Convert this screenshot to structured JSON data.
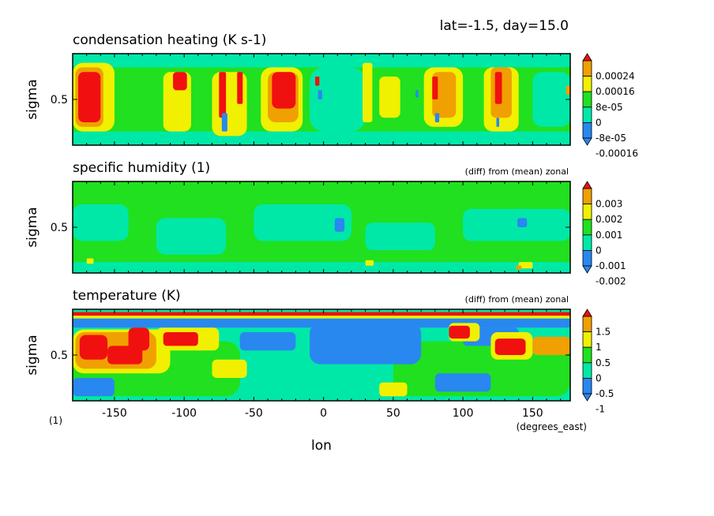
{
  "figure": {
    "header": "lat=-1.5, day=15.0",
    "xlabel": "lon",
    "x_units": "(degrees_east)",
    "y_units": "(1)"
  },
  "colors": {
    "red": "#f01010",
    "orange": "#f0a000",
    "yellow": "#f0f000",
    "green": "#20e020",
    "cyan": "#00e8a8",
    "blue": "#2888f0",
    "axis": "#000000"
  },
  "chart_data": [
    {
      "type": "heatmap",
      "title": "condensation heating (K s-1)",
      "subtitle": "",
      "ylabel": "sigma",
      "xlabel": "lon",
      "xlim": [
        -180,
        177
      ],
      "ylim": [
        0.0,
        1.0
      ],
      "x_ticks": [
        "-150",
        "-100",
        "-50",
        "0",
        "50",
        "100",
        "150"
      ],
      "x_tick_values": [
        -150,
        -100,
        -50,
        0,
        50,
        100,
        150
      ],
      "y_ticks": [
        "0.5"
      ],
      "y_tick_values": [
        0.5
      ],
      "colorbar_labels": [
        "0.00024",
        "0.00016",
        "8e-05",
        "0",
        "-8e-05",
        "-0.00016"
      ],
      "colorbar_colors": [
        "red",
        "orange",
        "yellow",
        "green",
        "cyan",
        "blue",
        "blue"
      ],
      "background": "green",
      "features": [
        {
          "level": "cyan",
          "xmin": -180,
          "xmax": 177,
          "ymin": 0.0,
          "ymax": 0.15
        },
        {
          "level": "cyan",
          "xmin": -180,
          "xmax": 177,
          "ymin": 0.85,
          "ymax": 1.0
        },
        {
          "level": "cyan",
          "xmin": -10,
          "xmax": 30,
          "ymin": 0.15,
          "ymax": 0.85
        },
        {
          "level": "cyan",
          "xmin": 150,
          "xmax": 177,
          "ymin": 0.2,
          "ymax": 0.8
        },
        {
          "level": "yellow",
          "xmin": -180,
          "xmax": -150,
          "ymin": 0.15,
          "ymax": 0.9
        },
        {
          "level": "orange",
          "xmin": -178,
          "xmax": -158,
          "ymin": 0.2,
          "ymax": 0.85
        },
        {
          "level": "red",
          "xmin": -176,
          "xmax": -160,
          "ymin": 0.25,
          "ymax": 0.8
        },
        {
          "level": "yellow",
          "xmin": -115,
          "xmax": -95,
          "ymin": 0.15,
          "ymax": 0.8
        },
        {
          "level": "red",
          "xmin": -108,
          "xmax": -98,
          "ymin": 0.6,
          "ymax": 0.8
        },
        {
          "level": "yellow",
          "xmin": -80,
          "xmax": -55,
          "ymin": 0.1,
          "ymax": 0.8
        },
        {
          "level": "red",
          "xmin": -75,
          "xmax": -70,
          "ymin": 0.3,
          "ymax": 0.8
        },
        {
          "level": "blue",
          "xmin": -73,
          "xmax": -69,
          "ymin": 0.15,
          "ymax": 0.35
        },
        {
          "level": "red",
          "xmin": -62,
          "xmax": -58,
          "ymin": 0.45,
          "ymax": 0.8
        },
        {
          "level": "yellow",
          "xmin": -45,
          "xmax": -15,
          "ymin": 0.15,
          "ymax": 0.85
        },
        {
          "level": "orange",
          "xmin": -40,
          "xmax": -18,
          "ymin": 0.25,
          "ymax": 0.8
        },
        {
          "level": "red",
          "xmin": -37,
          "xmax": -20,
          "ymin": 0.4,
          "ymax": 0.8
        },
        {
          "level": "red",
          "xmin": -6,
          "xmax": -3,
          "ymin": 0.65,
          "ymax": 0.75
        },
        {
          "level": "blue",
          "xmin": -4,
          "xmax": -1,
          "ymin": 0.5,
          "ymax": 0.6
        },
        {
          "level": "yellow",
          "xmin": 28,
          "xmax": 35,
          "ymin": 0.25,
          "ymax": 0.9
        },
        {
          "level": "yellow",
          "xmin": 40,
          "xmax": 55,
          "ymin": 0.3,
          "ymax": 0.75
        },
        {
          "level": "blue",
          "xmin": 66,
          "xmax": 68,
          "ymin": 0.52,
          "ymax": 0.6
        },
        {
          "level": "yellow",
          "xmin": 72,
          "xmax": 100,
          "ymin": 0.2,
          "ymax": 0.85
        },
        {
          "level": "orange",
          "xmin": 78,
          "xmax": 95,
          "ymin": 0.3,
          "ymax": 0.8
        },
        {
          "level": "red",
          "xmin": 78,
          "xmax": 82,
          "ymin": 0.5,
          "ymax": 0.75
        },
        {
          "level": "blue",
          "xmin": 80,
          "xmax": 83,
          "ymin": 0.25,
          "ymax": 0.35
        },
        {
          "level": "yellow",
          "xmin": 115,
          "xmax": 140,
          "ymin": 0.15,
          "ymax": 0.85
        },
        {
          "level": "orange",
          "xmin": 120,
          "xmax": 135,
          "ymin": 0.3,
          "ymax": 0.85
        },
        {
          "level": "red",
          "xmin": 123,
          "xmax": 128,
          "ymin": 0.45,
          "ymax": 0.8
        },
        {
          "level": "blue",
          "xmin": 124,
          "xmax": 126,
          "ymin": 0.2,
          "ymax": 0.3
        },
        {
          "level": "orange",
          "xmin": 174,
          "xmax": 177,
          "ymin": 0.55,
          "ymax": 0.65
        }
      ]
    },
    {
      "type": "heatmap",
      "title": "specific humidity (1)",
      "subtitle": "(diff) from (mean) zonal",
      "ylabel": "sigma",
      "xlabel": "lon",
      "xlim": [
        -180,
        177
      ],
      "ylim": [
        0.0,
        1.0
      ],
      "x_ticks": [
        "-150",
        "-100",
        "-50",
        "0",
        "50",
        "100",
        "150"
      ],
      "x_tick_values": [
        -150,
        -100,
        -50,
        0,
        50,
        100,
        150
      ],
      "y_ticks": [
        "0.5"
      ],
      "y_tick_values": [
        0.5
      ],
      "colorbar_labels": [
        "0.003",
        "0.002",
        "0.001",
        "0",
        "-0.001",
        "-0.002"
      ],
      "colorbar_colors": [
        "red",
        "orange",
        "yellow",
        "green",
        "cyan",
        "blue",
        "blue"
      ],
      "background": "green",
      "features": [
        {
          "level": "cyan",
          "xmin": -180,
          "xmax": -140,
          "ymin": 0.35,
          "ymax": 0.75
        },
        {
          "level": "cyan",
          "xmin": -120,
          "xmax": -70,
          "ymin": 0.2,
          "ymax": 0.6
        },
        {
          "level": "cyan",
          "xmin": -50,
          "xmax": 20,
          "ymin": 0.35,
          "ymax": 0.75
        },
        {
          "level": "cyan",
          "xmin": 30,
          "xmax": 80,
          "ymin": 0.25,
          "ymax": 0.55
        },
        {
          "level": "cyan",
          "xmin": 100,
          "xmax": 177,
          "ymin": 0.35,
          "ymax": 0.7
        },
        {
          "level": "cyan",
          "xmin": -180,
          "xmax": 177,
          "ymin": 0.0,
          "ymax": 0.12
        },
        {
          "level": "blue",
          "xmin": 8,
          "xmax": 15,
          "ymin": 0.45,
          "ymax": 0.6
        },
        {
          "level": "blue",
          "xmin": 139,
          "xmax": 146,
          "ymin": 0.5,
          "ymax": 0.6
        },
        {
          "level": "yellow",
          "xmin": -170,
          "xmax": -165,
          "ymin": 0.1,
          "ymax": 0.16
        },
        {
          "level": "yellow",
          "xmin": 30,
          "xmax": 36,
          "ymin": 0.08,
          "ymax": 0.14
        },
        {
          "level": "yellow",
          "xmin": 140,
          "xmax": 150,
          "ymin": 0.05,
          "ymax": 0.12
        },
        {
          "level": "orange",
          "xmin": 138,
          "xmax": 142,
          "ymin": 0.04,
          "ymax": 0.08
        }
      ]
    },
    {
      "type": "heatmap",
      "title": "temperature (K)",
      "subtitle": "(diff) from (mean) zonal",
      "ylabel": "sigma",
      "xlabel": "lon",
      "xlim": [
        -180,
        177
      ],
      "ylim": [
        0.0,
        1.0
      ],
      "x_ticks": [
        "-150",
        "-100",
        "-50",
        "0",
        "50",
        "100",
        "150"
      ],
      "x_tick_values": [
        -150,
        -100,
        -50,
        0,
        50,
        100,
        150
      ],
      "y_ticks": [
        "0.5"
      ],
      "y_tick_values": [
        0.5
      ],
      "colorbar_labels": [
        "1.5",
        "1",
        "0.5",
        "0",
        "-0.5",
        "-1"
      ],
      "colorbar_colors": [
        "red",
        "orange",
        "yellow",
        "green",
        "cyan",
        "blue",
        "blue"
      ],
      "background": "cyan",
      "features": [
        {
          "level": "green",
          "xmin": -180,
          "xmax": -60,
          "ymin": 0.05,
          "ymax": 0.65
        },
        {
          "level": "green",
          "xmin": 50,
          "xmax": 177,
          "ymin": 0.05,
          "ymax": 0.65
        },
        {
          "level": "blue",
          "xmin": -180,
          "xmax": 177,
          "ymin": 0.8,
          "ymax": 0.9
        },
        {
          "level": "blue",
          "xmin": -10,
          "xmax": 70,
          "ymin": 0.4,
          "ymax": 0.85
        },
        {
          "level": "blue",
          "xmin": -60,
          "xmax": -20,
          "ymin": 0.55,
          "ymax": 0.75
        },
        {
          "level": "blue",
          "xmin": 100,
          "xmax": 140,
          "ymin": 0.6,
          "ymax": 0.8
        },
        {
          "level": "blue",
          "xmin": -180,
          "xmax": -150,
          "ymin": 0.05,
          "ymax": 0.25
        },
        {
          "level": "blue",
          "xmin": 80,
          "xmax": 120,
          "ymin": 0.1,
          "ymax": 0.3
        },
        {
          "level": "yellow",
          "xmin": -180,
          "xmax": -110,
          "ymin": 0.3,
          "ymax": 0.78
        },
        {
          "level": "orange",
          "xmin": -178,
          "xmax": -120,
          "ymin": 0.35,
          "ymax": 0.75
        },
        {
          "level": "red",
          "xmin": -175,
          "xmax": -155,
          "ymin": 0.45,
          "ymax": 0.72
        },
        {
          "level": "red",
          "xmin": -155,
          "xmax": -130,
          "ymin": 0.4,
          "ymax": 0.6
        },
        {
          "level": "red",
          "xmin": -140,
          "xmax": -125,
          "ymin": 0.55,
          "ymax": 0.8
        },
        {
          "level": "yellow",
          "xmin": -120,
          "xmax": -75,
          "ymin": 0.55,
          "ymax": 0.8
        },
        {
          "level": "red",
          "xmin": -115,
          "xmax": -90,
          "ymin": 0.6,
          "ymax": 0.75
        },
        {
          "level": "yellow",
          "xmin": -80,
          "xmax": -55,
          "ymin": 0.25,
          "ymax": 0.45
        },
        {
          "level": "yellow",
          "xmin": 90,
          "xmax": 112,
          "ymin": 0.65,
          "ymax": 0.85
        },
        {
          "level": "red",
          "xmin": 90,
          "xmax": 105,
          "ymin": 0.68,
          "ymax": 0.82
        },
        {
          "level": "yellow",
          "xmin": 120,
          "xmax": 150,
          "ymin": 0.45,
          "ymax": 0.75
        },
        {
          "level": "red",
          "xmin": 123,
          "xmax": 145,
          "ymin": 0.5,
          "ymax": 0.68
        },
        {
          "level": "orange",
          "xmin": 150,
          "xmax": 177,
          "ymin": 0.5,
          "ymax": 0.7
        },
        {
          "level": "red",
          "xmin": -180,
          "xmax": 177,
          "ymin": 0.93,
          "ymax": 0.97
        },
        {
          "level": "yellow",
          "xmin": -180,
          "xmax": 177,
          "ymin": 0.9,
          "ymax": 0.93
        },
        {
          "level": "yellow",
          "xmin": 40,
          "xmax": 60,
          "ymin": 0.05,
          "ymax": 0.2
        }
      ]
    }
  ]
}
